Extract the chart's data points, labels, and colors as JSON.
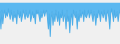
{
  "line_color": "#4daee8",
  "fill_color": "#5bb8f0",
  "fill_alpha": 1.0,
  "background_color": "#f0f0f0",
  "linewidth": 0.7,
  "y_values": [
    -1.2,
    -3.5,
    -1.0,
    -2.8,
    -1.5,
    -1.0,
    -2.0,
    -1.3,
    -1.8,
    -0.8,
    -1.5,
    -2.2,
    -1.0,
    -1.8,
    -2.5,
    -1.2,
    -2.0,
    -1.5,
    -2.8,
    -1.0,
    -1.5,
    -2.0,
    -1.2,
    -2.5,
    -1.8,
    -1.0,
    -1.5,
    -2.2,
    -1.0,
    -1.8,
    -2.0,
    -1.5,
    -1.0,
    -2.5,
    -1.8,
    -1.2,
    -2.0,
    -1.5,
    -2.8,
    -1.0,
    -1.5,
    -1.0,
    -1.8,
    -2.5,
    -1.2,
    -2.0,
    -1.5,
    -1.0,
    -1.8,
    -1.2,
    -1.0,
    -2.0,
    -3.5,
    -1.5,
    -4.5,
    -2.0,
    -1.2,
    -3.0,
    -1.5,
    -2.5,
    -1.0,
    -1.8,
    -2.5,
    -1.2,
    -3.0,
    -1.5,
    -2.0,
    -1.0,
    -2.5,
    -1.8,
    -1.5,
    -3.5,
    -1.0,
    -2.5,
    -1.8,
    -4.0,
    -2.0,
    -1.5,
    -3.0,
    -1.0,
    -1.5,
    -2.0,
    -1.2,
    -3.5,
    -1.5,
    -2.5,
    -1.0,
    -2.0,
    -1.5,
    -1.2,
    -2.5,
    -1.0,
    -1.8,
    -2.0,
    -1.5,
    -1.0,
    -2.0,
    -1.5,
    -1.0,
    -1.8,
    -2.5,
    -1.2,
    -1.8,
    -3.0,
    -1.5,
    -2.0,
    -1.0,
    -1.5,
    -2.5,
    -1.2,
    -1.5,
    -2.0,
    -1.0,
    -1.8,
    -2.5,
    -1.5,
    -1.0,
    -2.0,
    -3.5,
    -1.5,
    -0.8,
    -1.5,
    -2.5,
    -1.0,
    -2.0,
    -1.8,
    -1.2,
    -2.5,
    -1.5,
    -1.0
  ]
}
